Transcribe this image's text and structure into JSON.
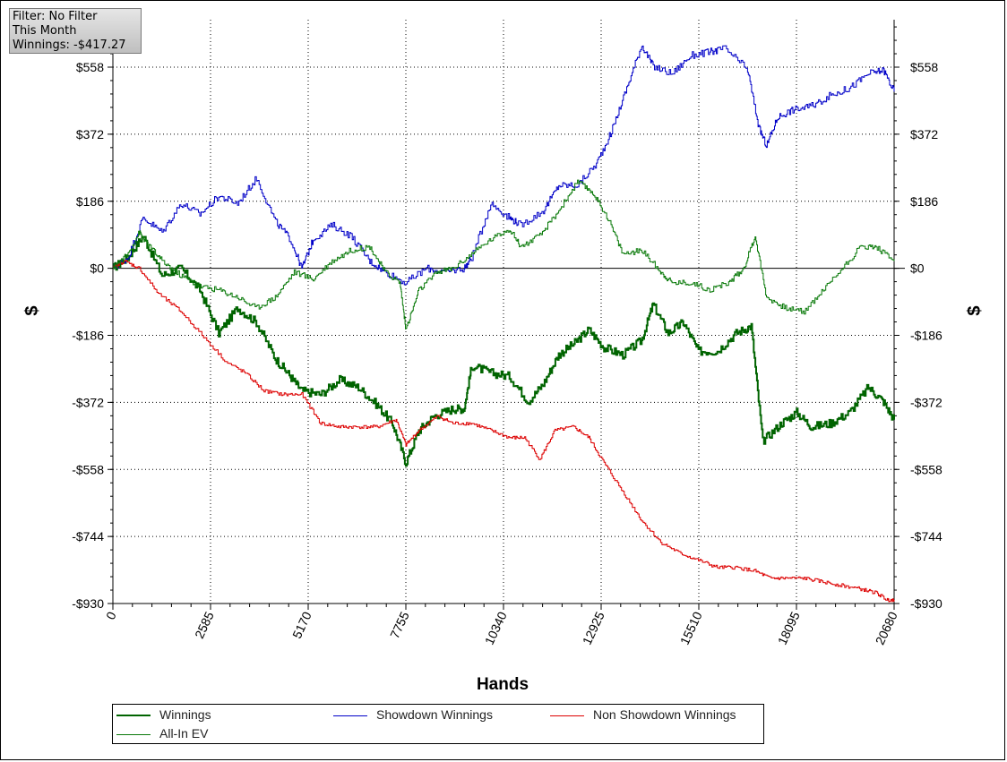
{
  "filter_box": {
    "line1": "Filter: No Filter",
    "line2": "This Month",
    "line3": "Winnings: -$417.27"
  },
  "colors": {
    "winnings": "#006400",
    "showdown": "#0000c8",
    "non_showdown": "#dd0000",
    "all_in_ev": "#0a7a0a"
  },
  "chart_data": {
    "type": "line",
    "title": "",
    "xlabel": "Hands",
    "ylabel": "$",
    "xlim": [
      0,
      20680
    ],
    "ylim": [
      -930,
      558
    ],
    "x_ticks": [
      0,
      2585,
      5170,
      7755,
      10340,
      12925,
      15510,
      18095,
      20680
    ],
    "x_tick_labels": [
      "0",
      "2585",
      "5170",
      "7755",
      "10340",
      "12925",
      "15510",
      "18095",
      "20680"
    ],
    "y_ticks": [
      558,
      372,
      186,
      0,
      -186,
      -372,
      -558,
      -744,
      -930
    ],
    "y_tick_labels": [
      "$558",
      "$372",
      "$186",
      "$0",
      "-$186",
      "-$372",
      "-$558",
      "-$744",
      "-$930"
    ],
    "grid": true,
    "legend_position": "bottom",
    "series": [
      {
        "name": "Winnings",
        "x": [
          0,
          400,
          800,
          1300,
          1800,
          2300,
          2800,
          3300,
          3800,
          4300,
          4700,
          5000,
          5500,
          6000,
          6500,
          7000,
          7400,
          7755,
          8100,
          8500,
          9000,
          9300,
          9500,
          10000,
          10500,
          11000,
          11400,
          11800,
          12200,
          12600,
          13000,
          13500,
          14000,
          14300,
          14700,
          15100,
          15500,
          16000,
          16500,
          16900,
          17200,
          17700,
          18100,
          18500,
          19000,
          19500,
          20000,
          20400,
          20680
        ],
        "y": [
          0,
          30,
          90,
          -20,
          0,
          -60,
          -180,
          -110,
          -150,
          -250,
          -300,
          -340,
          -350,
          -310,
          -330,
          -380,
          -430,
          -540,
          -450,
          -410,
          -390,
          -390,
          -270,
          -290,
          -300,
          -370,
          -320,
          -240,
          -210,
          -170,
          -220,
          -240,
          -200,
          -100,
          -180,
          -150,
          -230,
          -230,
          -180,
          -160,
          -480,
          -430,
          -400,
          -440,
          -430,
          -400,
          -330,
          -370,
          -420
        ]
      },
      {
        "name": "Showdown Winnings",
        "x": [
          0,
          400,
          800,
          1300,
          1800,
          2300,
          2800,
          3300,
          3800,
          4300,
          4700,
          5000,
          5300,
          5800,
          6300,
          6800,
          7200,
          7755,
          8300,
          8800,
          9300,
          9500,
          10000,
          10500,
          10800,
          11400,
          11800,
          12300,
          12800,
          13200,
          13600,
          14000,
          14300,
          14800,
          15300,
          15800,
          16200,
          16800,
          17100,
          17300,
          17600,
          18000,
          18500,
          19000,
          19500,
          20000,
          20400,
          20680
        ],
        "y": [
          0,
          30,
          140,
          100,
          180,
          150,
          200,
          180,
          250,
          130,
          80,
          0,
          80,
          120,
          90,
          20,
          -10,
          -40,
          0,
          -10,
          0,
          30,
          180,
          140,
          120,
          160,
          230,
          230,
          290,
          380,
          500,
          620,
          560,
          540,
          590,
          600,
          610,
          550,
          390,
          340,
          420,
          440,
          450,
          480,
          500,
          540,
          550,
          490
        ]
      },
      {
        "name": "Non Showdown Winnings",
        "x": [
          0,
          300,
          700,
          1200,
          1800,
          2400,
          3000,
          3500,
          4000,
          4500,
          5000,
          5500,
          6000,
          6500,
          7000,
          7500,
          7755,
          8100,
          8600,
          9000,
          9500,
          10000,
          10500,
          10900,
          11300,
          11700,
          12200,
          12600,
          13000,
          13500,
          14000,
          14500,
          15000,
          15500,
          16000,
          16500,
          17000,
          17400,
          17800,
          18300,
          18800,
          19300,
          19800,
          20200,
          20500,
          20680
        ],
        "y": [
          0,
          20,
          0,
          -70,
          -120,
          -190,
          -260,
          -290,
          -340,
          -350,
          -350,
          -430,
          -440,
          -440,
          -440,
          -420,
          -490,
          -450,
          -410,
          -430,
          -430,
          -450,
          -470,
          -470,
          -530,
          -450,
          -440,
          -470,
          -540,
          -620,
          -700,
          -760,
          -790,
          -810,
          -830,
          -830,
          -840,
          -860,
          -860,
          -860,
          -870,
          -880,
          -890,
          -900,
          -920,
          -920
        ]
      },
      {
        "name": "All-In EV",
        "x": [
          0,
          400,
          700,
          900,
          1300,
          1800,
          2300,
          2800,
          3300,
          3800,
          4300,
          4800,
          5300,
          5800,
          6300,
          6800,
          7200,
          7600,
          7755,
          8100,
          8600,
          9000,
          9500,
          10000,
          10500,
          10800,
          11300,
          11800,
          12300,
          12700,
          13100,
          13500,
          14000,
          14500,
          14800,
          15300,
          15800,
          16300,
          16700,
          17000,
          17300,
          17800,
          18300,
          18800,
          19300,
          19800,
          20200,
          20680
        ],
        "y": [
          0,
          40,
          100,
          70,
          20,
          -20,
          -50,
          -60,
          -80,
          -110,
          -80,
          -10,
          -30,
          20,
          50,
          60,
          -10,
          -40,
          -170,
          -60,
          -10,
          0,
          40,
          80,
          110,
          60,
          90,
          160,
          240,
          210,
          140,
          40,
          50,
          -10,
          -40,
          -40,
          -60,
          -40,
          0,
          90,
          -80,
          -110,
          -120,
          -60,
          0,
          60,
          60,
          20
        ]
      }
    ]
  }
}
